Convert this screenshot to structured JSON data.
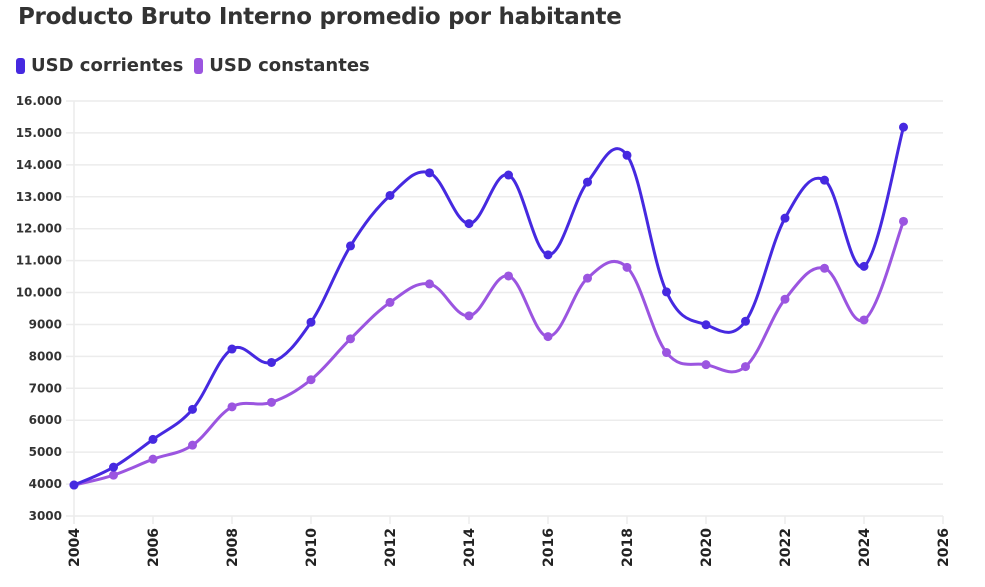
{
  "chart_data": {
    "type": "line",
    "title": "Producto Bruto Interno promedio por habitante",
    "xlabel": "",
    "ylabel": "",
    "xlim": [
      2004,
      2026
    ],
    "ylim": [
      3000,
      16000
    ],
    "grid": true,
    "legend_position": "top-left",
    "x_ticks": [
      "2004",
      "2006",
      "2008",
      "2010",
      "2012",
      "2014",
      "2016",
      "2018",
      "2020",
      "2022",
      "2024",
      "2026"
    ],
    "x_tick_values": [
      2004,
      2006,
      2008,
      2010,
      2012,
      2014,
      2016,
      2018,
      2020,
      2022,
      2024,
      2026
    ],
    "y_ticks": [
      "3000",
      "4000",
      "5000",
      "6000",
      "7000",
      "8000",
      "9000",
      "10.000",
      "11.000",
      "12.000",
      "13.000",
      "14.000",
      "15.000",
      "16.000"
    ],
    "y_tick_values": [
      3000,
      4000,
      5000,
      6000,
      7000,
      8000,
      9000,
      10000,
      11000,
      12000,
      13000,
      14000,
      15000,
      16000
    ],
    "x": [
      2004,
      2005,
      2006,
      2007,
      2008,
      2009,
      2010,
      2011,
      2012,
      2013,
      2014,
      2015,
      2016,
      2017,
      2018,
      2019,
      2020,
      2021,
      2022,
      2023,
      2024,
      2025
    ],
    "series": [
      {
        "name": "USD corrientes",
        "color": "#4629e0",
        "values": [
          3970,
          4530,
          5400,
          6340,
          8230,
          7810,
          9070,
          11460,
          13040,
          13750,
          12160,
          13680,
          11180,
          13460,
          14300,
          10020,
          8990,
          9100,
          12330,
          13520,
          10820,
          15180
        ]
      },
      {
        "name": "USD constantes",
        "color": "#9b55e0",
        "values": [
          3970,
          4280,
          4780,
          5220,
          6420,
          6560,
          7270,
          8550,
          9690,
          10270,
          9270,
          10520,
          8620,
          10450,
          10790,
          8120,
          7740,
          7680,
          9790,
          10760,
          9140,
          12230
        ]
      }
    ]
  }
}
